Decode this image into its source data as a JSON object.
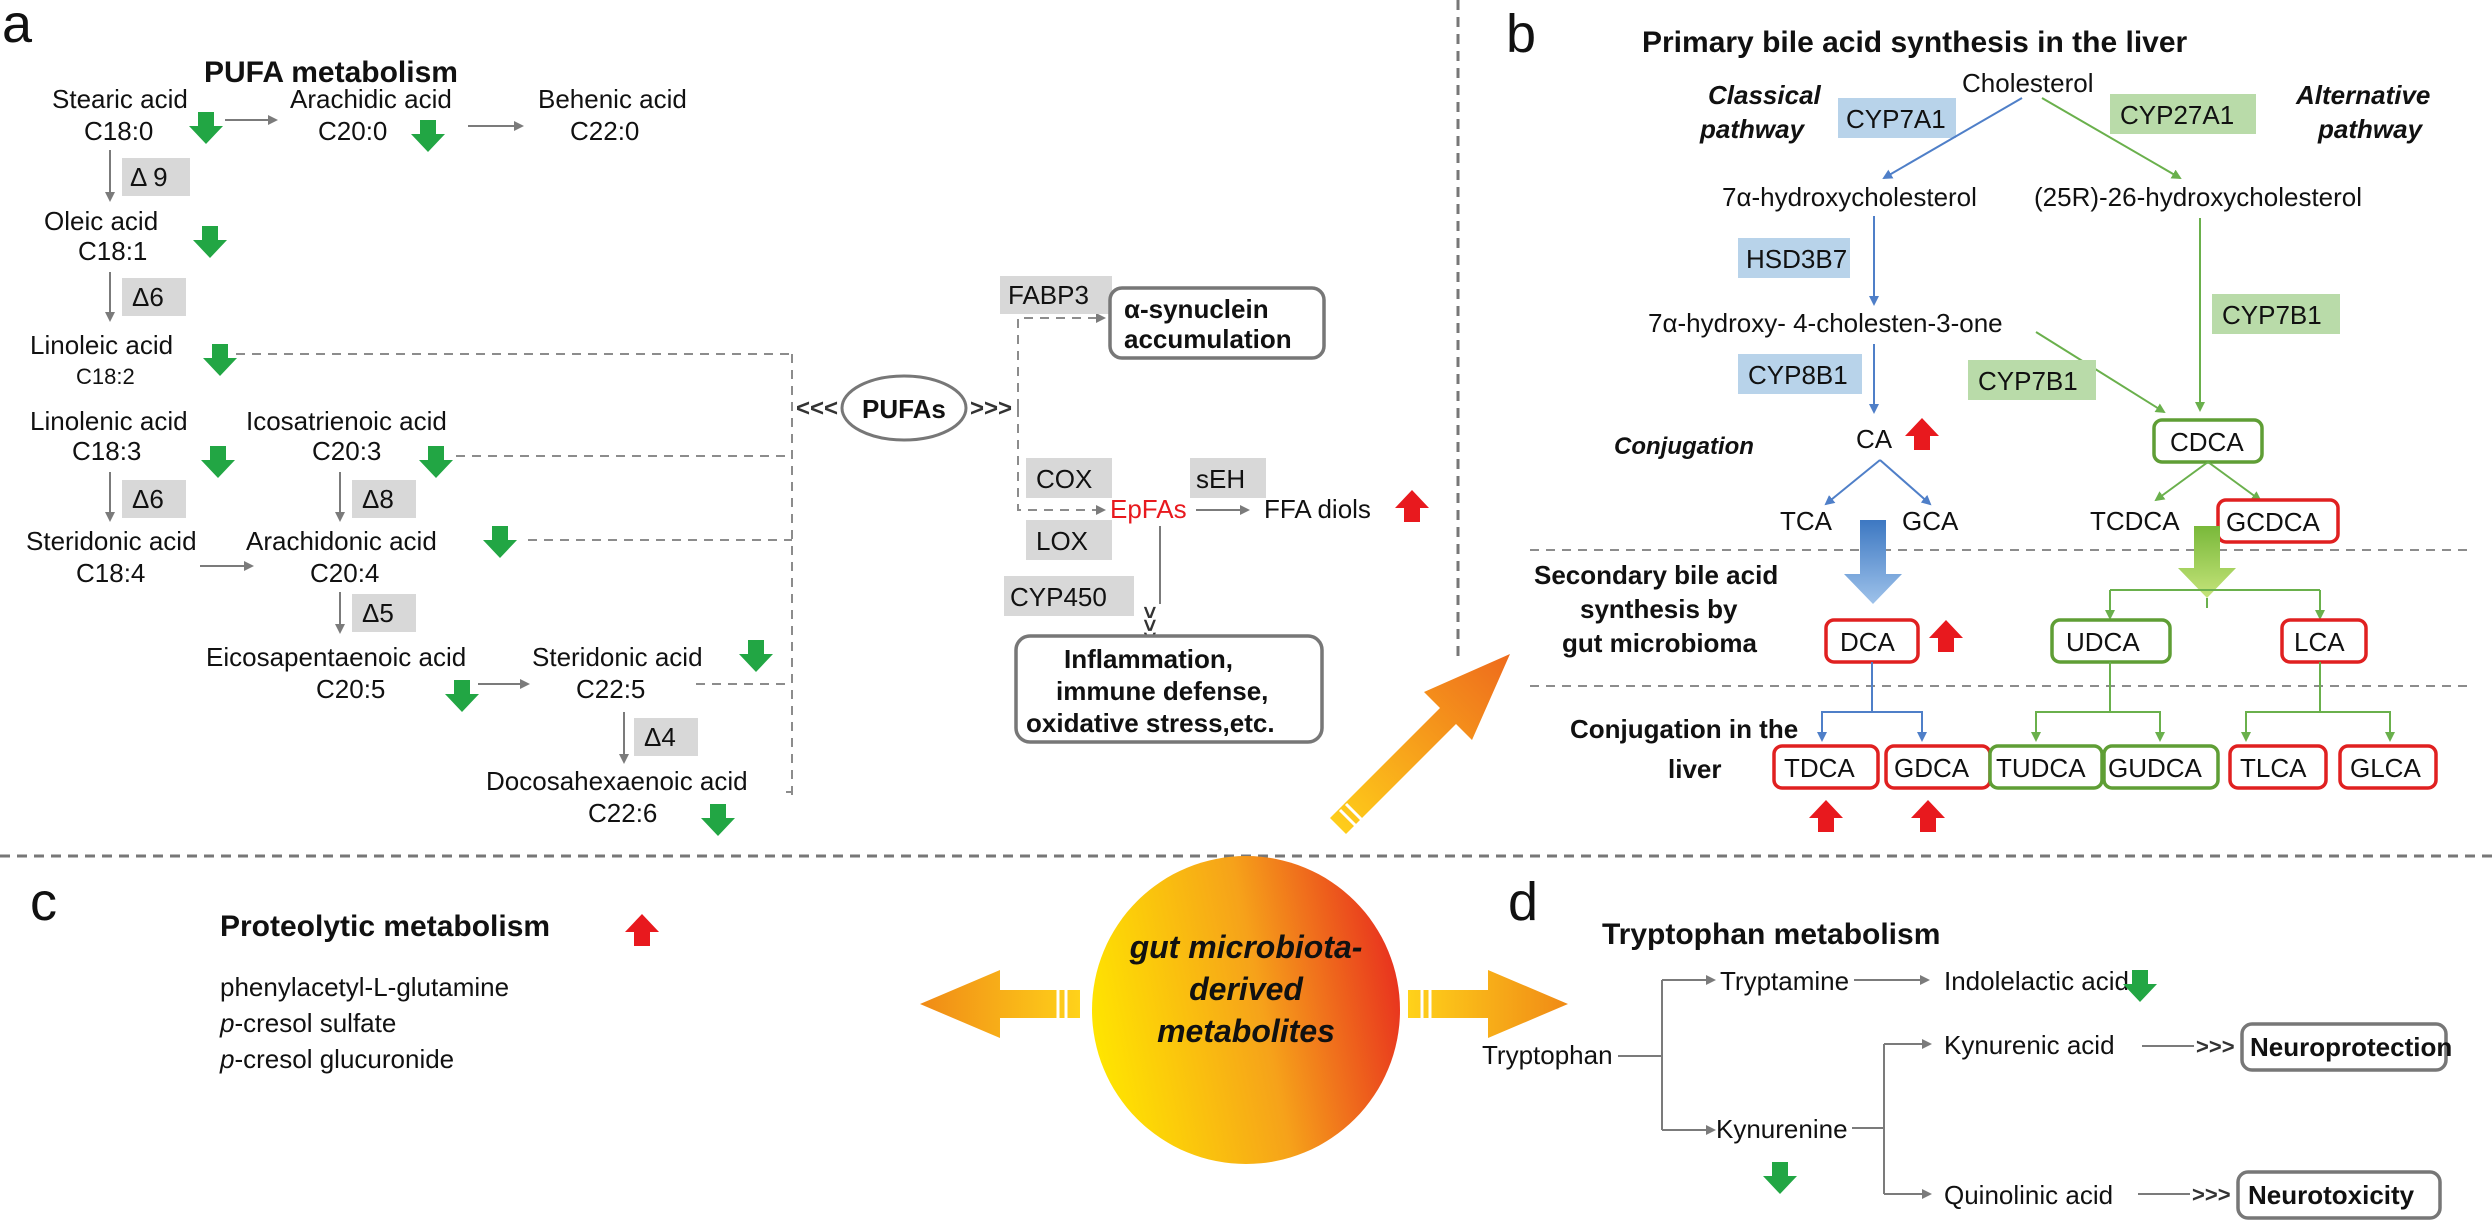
{
  "panels": {
    "a": "a",
    "b": "b",
    "c": "c",
    "d": "d"
  },
  "panel_a": {
    "title": "PUFA  metabolism",
    "stearic": [
      "Stearic acid",
      "C18:0"
    ],
    "arachidic": [
      "Arachidic acid",
      "C20:0"
    ],
    "behenic": [
      "Behenic acid",
      "C22:0"
    ],
    "d9": "Δ 9",
    "oleic": [
      "Oleic acid",
      "C18:1"
    ],
    "d6a": "Δ6",
    "linoleic": [
      "Linoleic acid",
      "C18:2"
    ],
    "linolenic": [
      "Linolenic acid",
      "C18:3"
    ],
    "icosatrienoic": [
      "Icosatrienoic acid",
      "C20:3"
    ],
    "d6b": "Δ6",
    "d8": "Δ8",
    "steridonic1": [
      "Steridonic acid",
      "C18:4"
    ],
    "arachidonic": [
      "Arachidonic acid",
      "C20:4"
    ],
    "d5": "Δ5",
    "eicosapentaenoic": [
      "Eicosapentaenoic acid",
      "C20:5"
    ],
    "steridonic2": [
      "Steridonic acid",
      "C22:5"
    ],
    "d4": "Δ4",
    "docosahexaenoic": [
      "Docosahexaenoic acid",
      "C22:6"
    ],
    "pufas": "PUFAs",
    "fabp3": "FABP3",
    "synuclein": [
      "α-synuclein",
      "accumulation"
    ],
    "cox": "COX",
    "lox": "LOX",
    "cyp450": "CYP450",
    "seh": "sEH",
    "epfas": "EpFAs",
    "ffa_diols": "FFA diols",
    "inflammation": [
      "Inflammation,",
      "immune defense,",
      "oxidative stress,etc."
    ]
  },
  "panel_b": {
    "title": "Primary bile acid synthesis in the liver",
    "cholesterol": "Cholesterol",
    "classical": [
      "Classical",
      "pathway"
    ],
    "alternative": [
      "Alternative",
      "pathway"
    ],
    "cyp7a1": "CYP7A1",
    "cyp27a1": "CYP27A1",
    "hydroxy7": "7α-hydroxycholesterol",
    "hydroxy26": "(25R)-26-hydroxycholesterol",
    "hsd3b7": "HSD3B7",
    "cholestenone": "7α-hydroxy- 4-cholesten-3-one",
    "cyp7b1_a": "CYP7B1",
    "cyp7b1_b": "CYP7B1",
    "cyp8b1": "CYP8B1",
    "conjugation": "Conjugation",
    "ca": "CA",
    "cdca": "CDCA",
    "tca": "TCA",
    "gca": "GCA",
    "tcdca": "TCDCA",
    "gcdca": "GCDCA",
    "secondary": [
      "Secondary bile acid",
      "synthesis by",
      "gut microbioma"
    ],
    "dca": "DCA",
    "udca": "UDCA",
    "lca": "LCA",
    "conj_liver": [
      "Conjugation in the",
      "liver"
    ],
    "tdca": "TDCA",
    "gdca": "GDCA",
    "tudca": "TUDCA",
    "gudca": "GUDCA",
    "tlca": "TLCA",
    "glca": "GLCA"
  },
  "center": [
    "gut microbiota-",
    "derived",
    "metabolites"
  ],
  "panel_c": {
    "title": "Proteolytic metabolism",
    "items": [
      {
        "prefix": "",
        "text": "phenylacetyl-L-glutamine"
      },
      {
        "prefix": "p",
        "text": "-cresol sulfate"
      },
      {
        "prefix": "p",
        "text": "-cresol glucuronide"
      }
    ]
  },
  "panel_d": {
    "title": "Tryptophan metabolism",
    "tryptophan": "Tryptophan",
    "tryptamine": "Tryptamine",
    "indolelactic": "Indolelactic acid",
    "kynurenic": "Kynurenic acid",
    "neuroprotection": "Neuroprotection",
    "kynurenine": "Kynurenine",
    "quinolinic": "Quinolinic acid",
    "neurotoxicity": "Neurotoxicity"
  },
  "colors": {
    "up": "#e8191e",
    "down": "#22a644",
    "blue_arrow": "#4f86c6",
    "green_arrow": "#86c440",
    "epfas": "#e8191e"
  }
}
